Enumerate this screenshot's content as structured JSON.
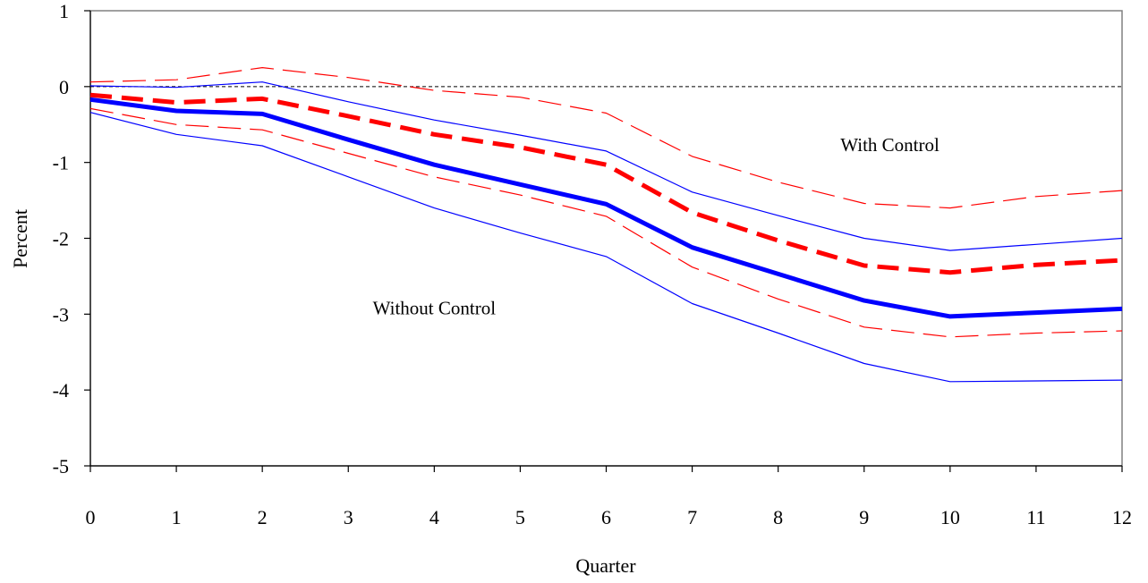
{
  "chart_data": {
    "type": "line",
    "title": "",
    "xlabel": "Quarter",
    "ylabel": "Percent",
    "x": [
      "0",
      "1",
      "2",
      "3",
      "4",
      "5",
      "6",
      "7",
      "8",
      "9",
      "10",
      "11",
      "12"
    ],
    "ylim": [
      -5,
      1
    ],
    "yticks": [
      "1",
      "0",
      "-1",
      "-2",
      "-3",
      "-4",
      "-5"
    ],
    "zero_line": true,
    "grid": false,
    "series": [
      {
        "style": "thick-solid",
        "color": "#0000ff",
        "values": [
          -0.17,
          -0.32,
          -0.36,
          -0.7,
          -1.03,
          -1.29,
          -1.55,
          -2.12,
          -2.47,
          -2.82,
          -3.03,
          -2.98,
          -2.93
        ]
      },
      {
        "style": "thin-solid",
        "color": "#0000ff",
        "values": [
          0.01,
          -0.01,
          0.06,
          -0.2,
          -0.44,
          -0.64,
          -0.85,
          -1.39,
          -1.7,
          -2.0,
          -2.16,
          -2.08,
          -2.0
        ]
      },
      {
        "style": "thin-solid",
        "color": "#0000ff",
        "values": [
          -0.34,
          -0.63,
          -0.78,
          -1.19,
          -1.6,
          -1.93,
          -2.24,
          -2.86,
          -3.25,
          -3.65,
          -3.89,
          -3.88,
          -3.87
        ]
      },
      {
        "style": "thick-dashed",
        "color": "#ff0000",
        "values": [
          -0.11,
          -0.21,
          -0.16,
          -0.39,
          -0.63,
          -0.8,
          -1.03,
          -1.66,
          -2.03,
          -2.36,
          -2.45,
          -2.35,
          -2.29
        ]
      },
      {
        "style": "thin-dashed",
        "color": "#ff0000",
        "values": [
          0.06,
          0.09,
          0.25,
          0.12,
          -0.05,
          -0.14,
          -0.35,
          -0.92,
          -1.26,
          -1.54,
          -1.6,
          -1.45,
          -1.37
        ]
      },
      {
        "style": "thin-dashed",
        "color": "#ff0000",
        "values": [
          -0.29,
          -0.5,
          -0.57,
          -0.88,
          -1.19,
          -1.43,
          -1.71,
          -2.38,
          -2.8,
          -3.17,
          -3.3,
          -3.25,
          -3.22
        ]
      }
    ],
    "annotations": [
      {
        "text": "With Control",
        "x": 9.3,
        "y": -0.85
      },
      {
        "text": "Without Control",
        "x": 4.0,
        "y": -3.0
      }
    ]
  }
}
